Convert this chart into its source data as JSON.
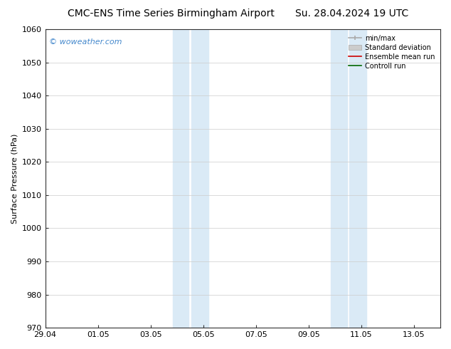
{
  "title_left": "CMC-ENS Time Series Birmingham Airport",
  "title_right": "Su. 28.04.2024 19 UTC",
  "ylabel": "Surface Pressure (hPa)",
  "ylim": [
    970,
    1060
  ],
  "yticks": [
    970,
    980,
    990,
    1000,
    1010,
    1020,
    1030,
    1040,
    1050,
    1060
  ],
  "xtick_labels": [
    "29.04",
    "01.05",
    "03.05",
    "05.05",
    "07.05",
    "09.05",
    "11.05",
    "13.05"
  ],
  "xtick_positions": [
    0,
    2,
    4,
    6,
    8,
    10,
    12,
    14
  ],
  "xlim": [
    0,
    15
  ],
  "shaded_regions": [
    {
      "xmin": 4.85,
      "xmax": 5.45
    },
    {
      "xmin": 5.55,
      "xmax": 6.2
    },
    {
      "xmin": 10.85,
      "xmax": 11.45
    },
    {
      "xmin": 11.55,
      "xmax": 12.2
    }
  ],
  "shaded_color": "#daeaf6",
  "watermark_text": "© woweather.com",
  "watermark_color": "#4488cc",
  "legend_labels": [
    "min/max",
    "Standard deviation",
    "Ensemble mean run",
    "Controll run"
  ],
  "legend_line_color_0": "#aaaaaa",
  "legend_fill_color_1": "#cccccc",
  "legend_line_color_2": "#cc0000",
  "legend_line_color_3": "#006600",
  "bg_color": "#ffffff",
  "title_fontsize": 10,
  "ylabel_fontsize": 8,
  "tick_fontsize": 8,
  "legend_fontsize": 7,
  "watermark_fontsize": 8
}
